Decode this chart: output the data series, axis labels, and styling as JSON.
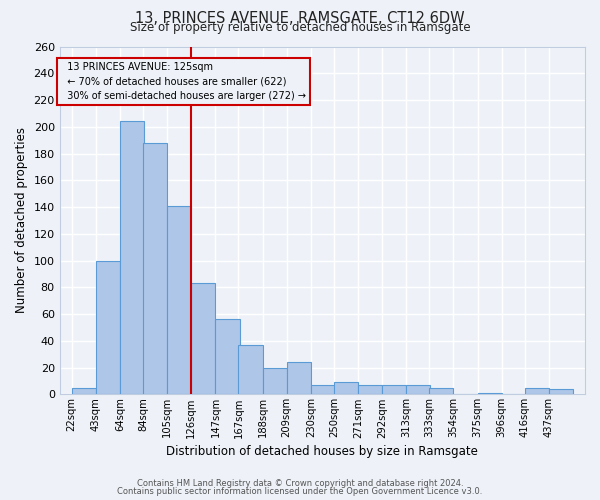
{
  "title": "13, PRINCES AVENUE, RAMSGATE, CT12 6DW",
  "subtitle": "Size of property relative to detached houses in Ramsgate",
  "xlabel": "Distribution of detached houses by size in Ramsgate",
  "ylabel": "Number of detached properties",
  "bar_labels": [
    "22sqm",
    "43sqm",
    "64sqm",
    "84sqm",
    "105sqm",
    "126sqm",
    "147sqm",
    "167sqm",
    "188sqm",
    "209sqm",
    "230sqm",
    "250sqm",
    "271sqm",
    "292sqm",
    "313sqm",
    "333sqm",
    "354sqm",
    "375sqm",
    "396sqm",
    "416sqm",
    "437sqm"
  ],
  "bar_values": [
    5,
    100,
    204,
    188,
    141,
    83,
    56,
    37,
    20,
    24,
    7,
    9,
    7,
    7,
    7,
    5,
    0,
    1,
    0,
    5,
    4
  ],
  "bar_color": "#aec6e8",
  "bar_edge_color": "#5b9bd5",
  "ylim": [
    0,
    260
  ],
  "yticks": [
    0,
    20,
    40,
    60,
    80,
    100,
    120,
    140,
    160,
    180,
    200,
    220,
    240,
    260
  ],
  "property_label": "13 PRINCES AVENUE: 125sqm",
  "annotation_line1": "← 70% of detached houses are smaller (622)",
  "annotation_line2": "30% of semi-detached houses are larger (272) →",
  "vline_x": 126,
  "vline_color": "#cc0000",
  "box_edge_color": "#cc0000",
  "footnote1": "Contains HM Land Registry data © Crown copyright and database right 2024.",
  "footnote2": "Contains public sector information licensed under the Open Government Licence v3.0.",
  "bg_color": "#eef2f8",
  "grid_color": "#ffffff",
  "title_fontsize": 10.5,
  "subtitle_fontsize": 8.5
}
